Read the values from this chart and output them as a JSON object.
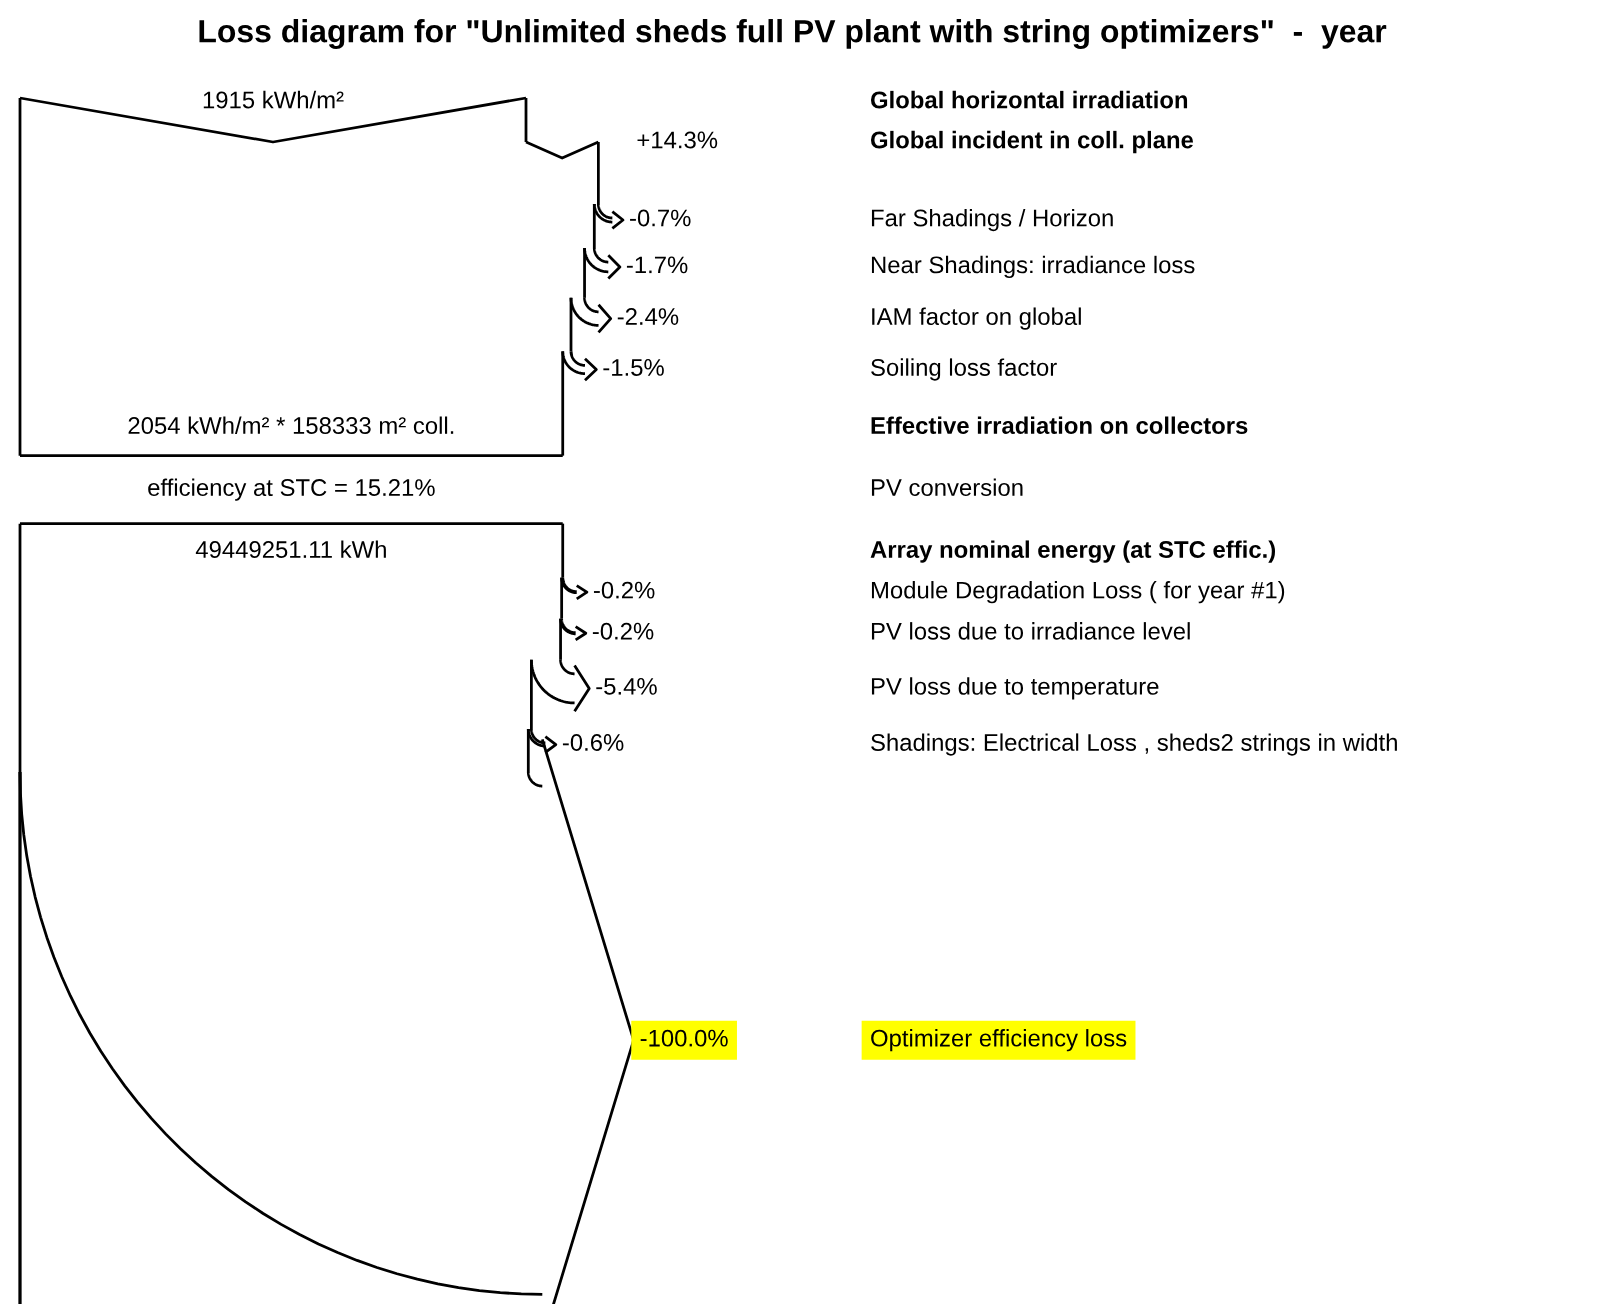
{
  "chart_data": {
    "type": "other",
    "title": "Loss diagram for \"Unlimited sheds full PV plant with string optimizers\"  -  year",
    "categories": [
      "Global horizontal irradiation",
      "Global incident in coll. plane",
      "Far Shadings / Horizon",
      "Near Shadings: irradiance loss",
      "IAM factor on global",
      "Soiling loss factor",
      "Effective irradiation on collectors",
      "PV conversion",
      "Array nominal energy (at STC effic.)",
      "Module Degradation Loss ( for year #1)",
      "PV loss due to irradiance level",
      "PV loss due to temperature",
      "Shadings: Electrical Loss , sheds2 strings in width",
      "Optimizer efficiency loss"
    ],
    "values": [
      null,
      14.3,
      -0.7,
      -1.7,
      -2.4,
      -1.5,
      null,
      null,
      null,
      -0.2,
      -0.2,
      -5.4,
      -0.6,
      -100.0
    ],
    "value_labels": [
      null,
      "+14.3%",
      "-0.7%",
      "-1.7%",
      "-2.4%",
      "-1.5%",
      null,
      null,
      null,
      "-0.2%",
      "-0.2%",
      "-5.4%",
      "-0.6%",
      "-100.0%"
    ],
    "colors": [
      null,
      null,
      null,
      null,
      null,
      null,
      null,
      null,
      null,
      null,
      null,
      null,
      null,
      "#ffff00"
    ],
    "annotations": [
      "1915 kWh/m²",
      "2054 kWh/m² * 158333 m² coll.",
      "efficiency at STC = 15.21%",
      "49449251.11 kWh"
    ]
  }
}
